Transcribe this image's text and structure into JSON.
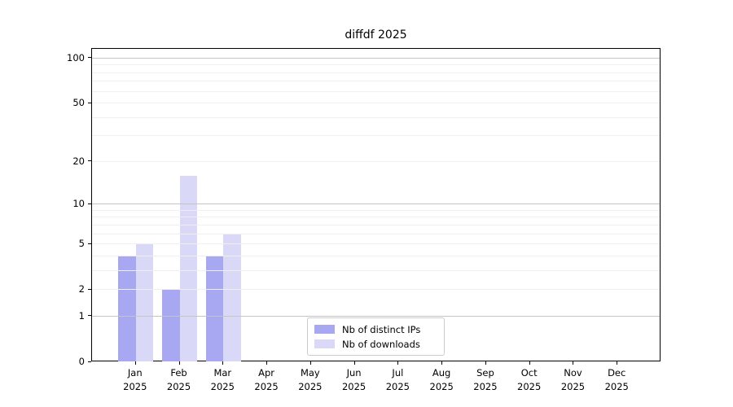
{
  "title": "diffdf 2025",
  "chart_data": {
    "type": "bar",
    "title": "diffdf 2025",
    "categories": [
      "Jan",
      "Feb",
      "Mar",
      "Apr",
      "May",
      "Jun",
      "Jul",
      "Aug",
      "Sep",
      "Oct",
      "Nov",
      "Dec"
    ],
    "category_year": "2025",
    "series": [
      {
        "name": "Nb of distinct IPs",
        "color": "#a7a7f2",
        "values": [
          4,
          2,
          4,
          0,
          0,
          0,
          0,
          0,
          0,
          0,
          0,
          0
        ]
      },
      {
        "name": "Nb of downloads",
        "color": "#d9d9f7",
        "values": [
          5,
          16,
          6,
          0,
          0,
          0,
          0,
          0,
          0,
          0,
          0,
          0
        ]
      }
    ],
    "xlabel": "",
    "ylabel": "",
    "yscale": "log1p",
    "ylim": [
      0,
      116
    ],
    "yticks": [
      0,
      1,
      2,
      5,
      10,
      20,
      50,
      100
    ],
    "major_gridlines": [
      1,
      10,
      100
    ],
    "minor_gridlines": [
      2,
      3,
      4,
      5,
      6,
      7,
      8,
      9,
      20,
      30,
      40,
      50,
      60,
      70,
      80,
      90
    ],
    "grid": "on",
    "legend_position": "lower center inside plot"
  },
  "legend": {
    "items": [
      {
        "label": "Nb of distinct IPs",
        "color": "#a7a7f2"
      },
      {
        "label": "Nb of downloads",
        "color": "#d9d9f7"
      }
    ]
  }
}
